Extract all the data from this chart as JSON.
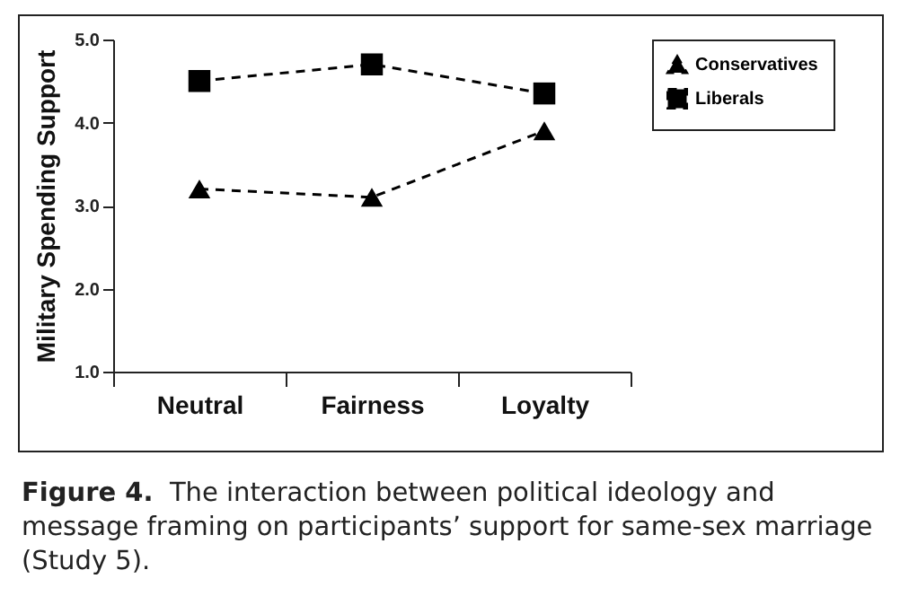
{
  "chart_data": {
    "type": "line",
    "title": "Figure 4.",
    "annotations": [
      "The interaction between political ideology and message framing on participants’ support for same-sex marriage (Study 5)."
    ],
    "ylabel": "Military Spending Support",
    "categories": [
      "Neutral",
      "Fairness",
      "Loyalty"
    ],
    "series": [
      {
        "name": "Conservatives",
        "color": "#000000",
        "marker": "triangle",
        "values": [
          3.2,
          3.1,
          3.9
        ]
      },
      {
        "name": "Liberals",
        "color": "#000000",
        "marker": "square",
        "values": [
          4.5,
          4.7,
          4.35
        ]
      }
    ],
    "ylim": [
      1,
      5
    ],
    "yticks": [
      {
        "value": 1,
        "label": "1.0"
      },
      {
        "value": 2,
        "label": "2.0"
      },
      {
        "value": 3,
        "label": "3.0"
      },
      {
        "value": 4,
        "label": "4.0"
      },
      {
        "value": 5,
        "label": "5.0"
      }
    ],
    "grid": false,
    "legend": "right",
    "line_style": "dashed"
  }
}
